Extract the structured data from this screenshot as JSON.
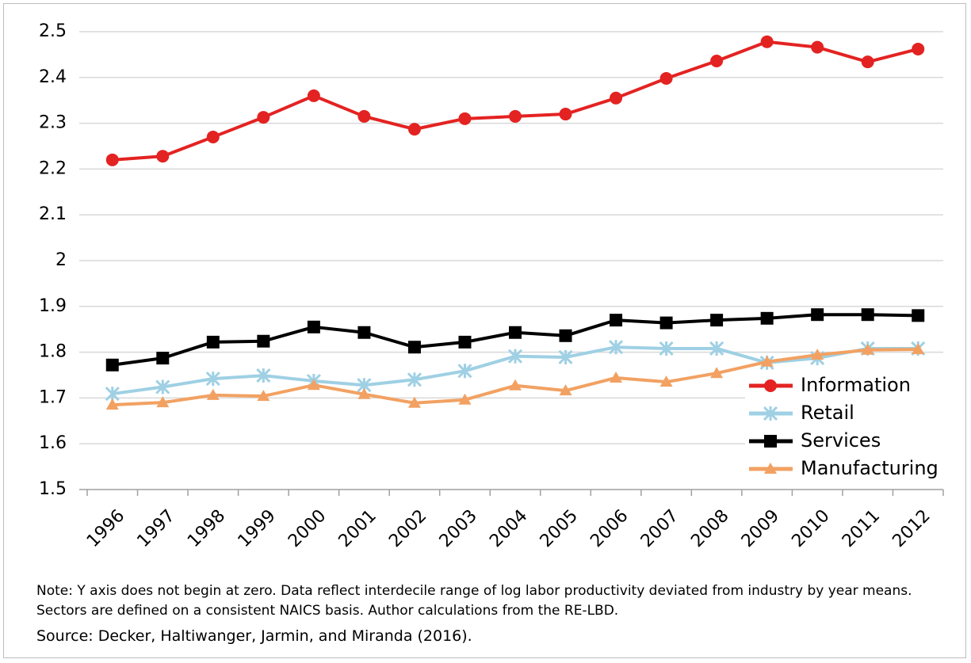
{
  "chart_data": {
    "type": "line",
    "categories": [
      "1996",
      "1997",
      "1998",
      "1999",
      "2000",
      "2001",
      "2002",
      "2003",
      "2004",
      "2005",
      "2006",
      "2007",
      "2008",
      "2009",
      "2010",
      "2011",
      "2012"
    ],
    "series": [
      {
        "name": "Information",
        "color": "#e32322",
        "marker": "circle",
        "values": [
          2.22,
          2.228,
          2.27,
          2.313,
          2.36,
          2.315,
          2.287,
          2.31,
          2.315,
          2.32,
          2.355,
          2.398,
          2.436,
          2.478,
          2.466,
          2.434,
          2.462
        ]
      },
      {
        "name": "Retail",
        "color": "#9fd0e4",
        "marker": "star",
        "values": [
          1.709,
          1.724,
          1.742,
          1.749,
          1.737,
          1.728,
          1.74,
          1.759,
          1.791,
          1.789,
          1.811,
          1.808,
          1.808,
          1.777,
          1.787,
          1.808,
          1.808
        ]
      },
      {
        "name": "Services",
        "color": "#000000",
        "marker": "square",
        "values": [
          1.772,
          1.787,
          1.822,
          1.824,
          1.855,
          1.843,
          1.811,
          1.822,
          1.843,
          1.836,
          1.87,
          1.864,
          1.87,
          1.874,
          1.882,
          1.882,
          1.88
        ]
      },
      {
        "name": "Manufacturing",
        "color": "#f2a162",
        "marker": "triangle",
        "values": [
          1.685,
          1.69,
          1.706,
          1.704,
          1.728,
          1.708,
          1.689,
          1.696,
          1.727,
          1.716,
          1.744,
          1.735,
          1.754,
          1.779,
          1.794,
          1.805,
          1.806
        ]
      }
    ],
    "ylim": [
      1.5,
      2.5
    ],
    "yticks": [
      1.5,
      1.6,
      1.7,
      1.8,
      1.9,
      2,
      2.1,
      2.2,
      2.3,
      2.4,
      2.5
    ],
    "grid": true,
    "legend": "lower right",
    "note": "Note: Y axis does not begin at zero. Data reflect interdecile range of log labor productivity deviated from industry by year means. Sectors are defined on a consistent NAICS basis. Author calculations from the RE-LBD.",
    "source": "Source: Decker, Haltiwanger, Jarmin, and Miranda (2016)."
  }
}
